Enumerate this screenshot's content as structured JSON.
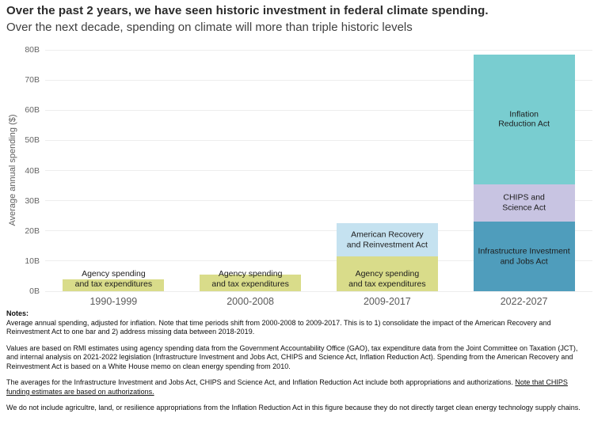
{
  "chart_data": {
    "type": "bar",
    "stacked": true,
    "title": "Over the past 2 years, we have seen historic investment in federal climate spending.",
    "subtitle": "Over the next decade, spending on climate will more than triple historic levels",
    "xlabel": "",
    "ylabel": "Average annual spending ($)",
    "ylim": [
      0,
      80
    ],
    "ytick_interval": 10,
    "yticks": [
      "0B",
      "10B",
      "20B",
      "30B",
      "40B",
      "50B",
      "60B",
      "70B",
      "80B"
    ],
    "grid": "horizontal",
    "legend": "none",
    "categories": [
      "1990-1999",
      "2000-2008",
      "2009-2017",
      "2022-2027"
    ],
    "bar_totals": [
      4,
      5.5,
      22.5,
      78.5
    ],
    "bars": [
      {
        "category": "1990-1999",
        "segments": [
          {
            "label": "Agency spending\nand tax expenditures",
            "value": 4,
            "color": "#d9dc8a",
            "label_pos": "bottom"
          }
        ]
      },
      {
        "category": "2000-2008",
        "segments": [
          {
            "label": "Agency spending\nand tax expenditures",
            "value": 5.5,
            "color": "#d9dc8a",
            "label_pos": "bottom"
          }
        ]
      },
      {
        "category": "2009-2017",
        "segments": [
          {
            "label": "Agency spending\nand tax expenditures",
            "value": 11.5,
            "color": "#d9dc8a",
            "label_pos": "bottom"
          },
          {
            "label": "American Recovery\nand Reinvestment Act",
            "value": 11,
            "color": "#c5e2f0",
            "label_pos": "center"
          }
        ]
      },
      {
        "category": "2022-2027",
        "segments": [
          {
            "label": "Infrastructure Investment\nand Jobs Act",
            "value": 23,
            "color": "#4f9dbc",
            "label_pos": "center"
          },
          {
            "label": "CHIPS and\nScience Act",
            "value": 12.5,
            "color": "#c8c4e2",
            "label_pos": "center"
          },
          {
            "label": "Inflation\nReduction Act",
            "value": 43,
            "color": "#79cdd0",
            "label_pos": "center"
          }
        ]
      }
    ]
  },
  "notes": {
    "heading": "Notes:",
    "p1": "Average annual spending, adjusted for inflation. Note that time periods shift from 2000-2008 to 2009-2017. This is to 1) consolidate the impact of the American Recovery and Reinvestment Act to one bar and 2) address missing data between 2018-2019.",
    "p2": "Values are based on RMI estimates using agency spending data from the Government Accountability Office (GAO), tax expenditure data from the Joint Committee on Taxation (JCT), and internal analysis on 2021-2022 legislation (Infrastructure Investment and Jobs Act, CHIPS and Science Act, Inflation Reduction Act). Spending from the American Recovery and Reinvestment Act is based on a White House memo on clean energy spending from 2010.",
    "p3_plain": "The averages for the Infrastructure Investment and Jobs Act, CHIPS and Science Act, and Inflation Reduction Act include both appropriations and authorizations. ",
    "p3_underlined": "Note that CHIPS funding estimates are based on authorizations.",
    "p4": "We do not include agricultre, land, or resilience appropriations from the Inflation Reduction Act in this figure because they do not directly target clean energy technology supply chains."
  }
}
